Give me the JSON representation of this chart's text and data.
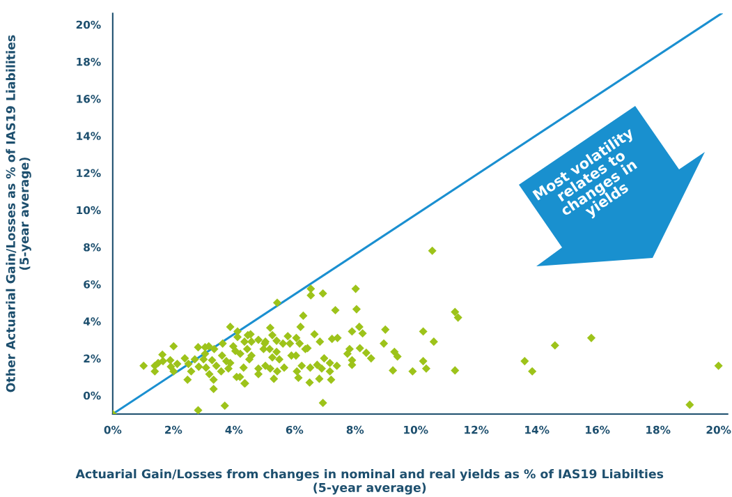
{
  "chart_data": {
    "type": "scatter",
    "xlabel": "Actuarial Gain/Losses from changes in nominal and real yields as % of IAS19 Liabilties\n(5-year average)",
    "ylabel": "Other Actuarial Gain/Losses as % of IAS19 Liabilities\n(5-year average)",
    "annotations": [
      "Most volatility relates to changes in yields"
    ],
    "xlim": [
      0,
      20.3
    ],
    "ylim": [
      -1,
      20.6
    ],
    "xticks": [
      {
        "value": 0,
        "label": "0%"
      },
      {
        "value": 2,
        "label": "2%"
      },
      {
        "value": 4,
        "label": "4%"
      },
      {
        "value": 6,
        "label": "6%"
      },
      {
        "value": 8,
        "label": "8%"
      },
      {
        "value": 10,
        "label": "10%"
      },
      {
        "value": 12,
        "label": "12%"
      },
      {
        "value": 14,
        "label": "14%"
      },
      {
        "value": 16,
        "label": "16%"
      },
      {
        "value": 18,
        "label": "18%"
      },
      {
        "value": 20,
        "label": "20%"
      }
    ],
    "yticks": [
      {
        "value": 0,
        "label": "0%"
      },
      {
        "value": 2,
        "label": "2%"
      },
      {
        "value": 4,
        "label": "4%"
      },
      {
        "value": 6,
        "label": "6%"
      },
      {
        "value": 8,
        "label": "8%"
      },
      {
        "value": 10,
        "label": "10%"
      },
      {
        "value": 12,
        "label": "12%"
      },
      {
        "value": 14,
        "label": "14%"
      },
      {
        "value": 16,
        "label": "16%"
      },
      {
        "value": 18,
        "label": "18%"
      },
      {
        "value": 20,
        "label": "20%"
      }
    ],
    "grid": false,
    "series": [
      {
        "type": "line",
        "marker": "none",
        "color": "#1a8fd0",
        "x": [
          0,
          20.1
        ],
        "values": [
          -1,
          20.6
        ]
      },
      {
        "marker": "diamond",
        "color": "#9dc31a",
        "x": [
          0,
          10.55,
          20.0,
          19.05,
          15.8,
          14.6,
          13.6,
          13.85,
          11.3,
          11.3,
          11.4,
          10.6,
          10.25,
          10.25,
          10.35,
          9.9,
          9.25,
          9.0,
          8.95,
          9.3,
          9.4,
          6.54,
          6.94,
          8.02,
          6.54,
          5.43,
          7.35,
          8.05,
          6.29,
          6.2,
          6.66,
          6.84,
          7.24,
          7.42,
          7.9,
          8.14,
          8.25,
          8.16,
          8.37,
          8.53,
          7.82,
          7.75,
          7.9,
          7.9,
          6.98,
          7.17,
          6.75,
          6.52,
          6.9,
          7.4,
          7.17,
          6.82,
          7.21,
          6.5,
          6.94,
          6.24,
          6.08,
          6.13,
          6.43,
          6.36,
          5.9,
          6.05,
          6.17,
          6.06,
          5.78,
          5.85,
          5.62,
          5.41,
          5.2,
          5.27,
          5.04,
          4.98,
          5.18,
          5.41,
          5.27,
          5.5,
          5.66,
          5.43,
          5.32,
          5.2,
          5.04,
          4.81,
          4.81,
          4.55,
          4.58,
          4.81,
          5.02,
          4.51,
          4.35,
          4.58,
          4.32,
          1.02,
          1.39,
          1.39,
          1.5,
          1.64,
          1.66,
          1.9,
          2.01,
          2.13,
          1.92,
          2.01,
          2.38,
          2.5,
          2.47,
          2.59,
          2.71,
          2.82,
          2.82,
          2.84,
          3.05,
          3.17,
          3.05,
          3.0,
          3.08,
          3.19,
          3.33,
          3.33,
          3.35,
          3.28,
          3.42,
          3.63,
          3.61,
          3.58,
          3.75,
          3.7,
          3.88,
          3.82,
          3.88,
          4.12,
          4.12,
          3.98,
          4.05,
          4.09,
          4.2,
          4.35,
          4.37,
          4.44,
          4.46,
          4.21
        ],
        "values": [
          -1,
          7.8,
          1.6,
          -0.5,
          3.1,
          2.7,
          1.85,
          1.3,
          1.35,
          4.5,
          4.2,
          2.9,
          3.45,
          1.85,
          1.45,
          1.3,
          1.35,
          3.55,
          2.8,
          2.35,
          2.1,
          5.75,
          5.5,
          5.75,
          5.4,
          5.0,
          4.6,
          4.65,
          4.3,
          3.7,
          3.3,
          2.9,
          3.05,
          3.1,
          3.45,
          3.7,
          3.35,
          2.55,
          2.3,
          2.0,
          2.5,
          2.25,
          1.9,
          1.65,
          2.0,
          1.75,
          1.65,
          1.5,
          1.45,
          1.6,
          1.3,
          0.9,
          0.85,
          0.7,
          -0.4,
          1.6,
          1.3,
          0.95,
          2.55,
          2.5,
          2.15,
          2.15,
          2.8,
          3.1,
          3.2,
          2.8,
          2.8,
          2.95,
          3.65,
          3.25,
          2.9,
          2.5,
          2.5,
          2.35,
          2.05,
          1.95,
          1.5,
          1.3,
          0.9,
          1.45,
          1.6,
          1.45,
          1.15,
          3.3,
          2.9,
          3.0,
          2.8,
          1.95,
          0.65,
          2.15,
          1.5,
          1.6,
          1.6,
          1.3,
          1.75,
          2.2,
          1.85,
          1.9,
          2.65,
          1.7,
          1.55,
          1.3,
          2.0,
          1.7,
          0.85,
          1.3,
          1.95,
          2.6,
          -0.8,
          1.55,
          2.6,
          2.65,
          2.25,
          1.95,
          1.5,
          1.15,
          0.85,
          0.35,
          2.5,
          1.9,
          1.6,
          2.8,
          2.15,
          1.3,
          1.85,
          -0.55,
          1.75,
          1.45,
          3.7,
          3.45,
          3.15,
          2.65,
          2.4,
          1.0,
          1.0,
          2.9,
          0.65,
          2.5,
          3.25,
          2.25
        ]
      }
    ]
  }
}
